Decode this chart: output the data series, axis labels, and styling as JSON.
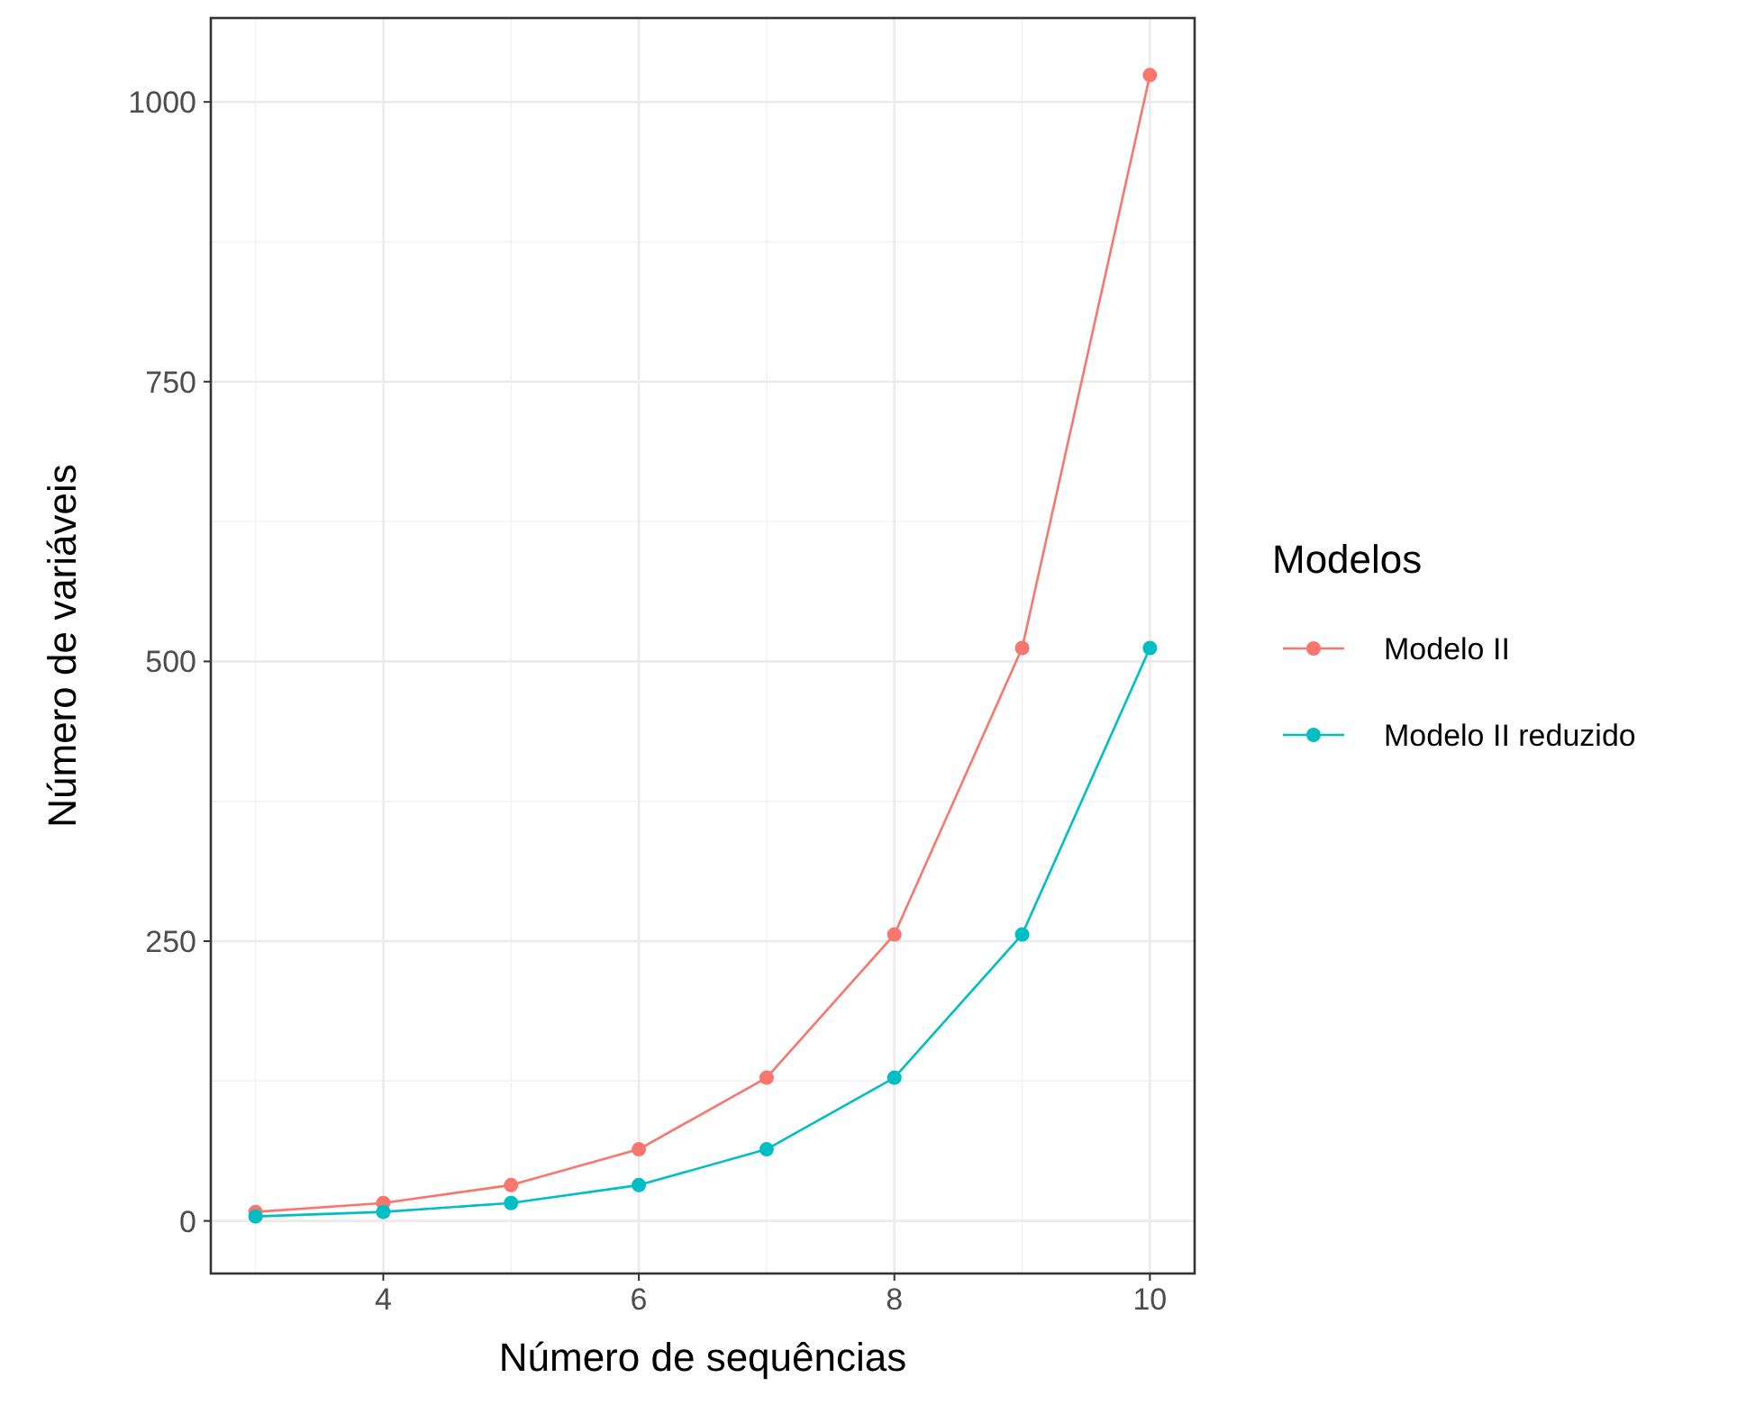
{
  "chart_data": {
    "type": "line",
    "xlabel": "Número de sequências",
    "ylabel": "Número de variáveis",
    "legend_title": "Modelos",
    "x": [
      3,
      4,
      5,
      6,
      7,
      8,
      9,
      10
    ],
    "series": [
      {
        "name": "Modelo II",
        "color": "#f8766d",
        "values": [
          8,
          16,
          32,
          64,
          128,
          256,
          512,
          1024
        ]
      },
      {
        "name": "Modelo II reduzido",
        "color": "#00bfc4",
        "values": [
          4,
          8,
          16,
          32,
          64,
          128,
          256,
          512
        ]
      }
    ],
    "xlim": [
      2.65,
      10.35
    ],
    "ylim": [
      -47,
      1075
    ],
    "xticks": [
      4,
      6,
      8,
      10
    ],
    "yticks": [
      0,
      250,
      500,
      750,
      1000
    ],
    "grid": true,
    "legend": "right",
    "marker": "circle",
    "line_style": "solid"
  }
}
